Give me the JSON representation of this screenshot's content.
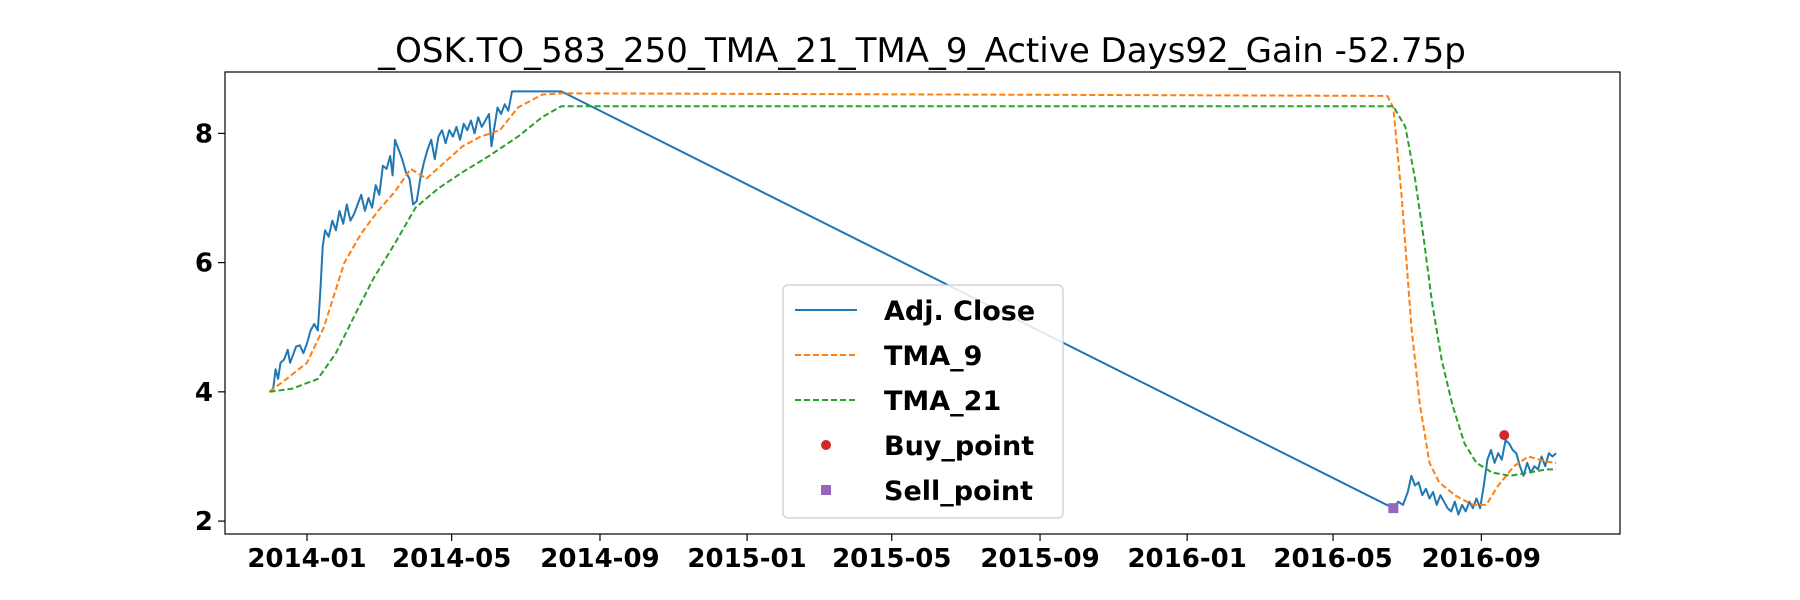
{
  "chart_data": {
    "type": "line",
    "title": "_OSK.TO_583_250_TMA_21_TMA_9_Active Days92_Gain -52.75p",
    "xlabel": "",
    "ylabel": "",
    "x_type": "date",
    "xlim": [
      "2013-10-25",
      "2016-12-25"
    ],
    "ylim": [
      1.8,
      8.95
    ],
    "xticks": [
      "2014-01",
      "2014-05",
      "2014-09",
      "2015-01",
      "2015-05",
      "2015-09",
      "2016-01",
      "2016-05",
      "2016-09"
    ],
    "yticks": [
      2,
      4,
      6,
      8
    ],
    "grid": false,
    "legend_position": "lower center",
    "series": [
      {
        "name": "Adj. Close",
        "color": "#1f77b4",
        "style": "solid",
        "points": [
          [
            "2013-12-01",
            4.0
          ],
          [
            "2013-12-04",
            4.05
          ],
          [
            "2013-12-06",
            4.35
          ],
          [
            "2013-12-08",
            4.2
          ],
          [
            "2013-12-10",
            4.45
          ],
          [
            "2013-12-13",
            4.5
          ],
          [
            "2013-12-16",
            4.65
          ],
          [
            "2013-12-18",
            4.45
          ],
          [
            "2013-12-20",
            4.55
          ],
          [
            "2013-12-23",
            4.7
          ],
          [
            "2013-12-26",
            4.72
          ],
          [
            "2013-12-29",
            4.6
          ],
          [
            "2014-01-01",
            4.75
          ],
          [
            "2014-01-04",
            4.95
          ],
          [
            "2014-01-07",
            5.05
          ],
          [
            "2014-01-10",
            4.95
          ],
          [
            "2014-01-12",
            5.55
          ],
          [
            "2014-01-14",
            6.25
          ],
          [
            "2014-01-16",
            6.5
          ],
          [
            "2014-01-19",
            6.4
          ],
          [
            "2014-01-22",
            6.65
          ],
          [
            "2014-01-25",
            6.5
          ],
          [
            "2014-01-28",
            6.8
          ],
          [
            "2014-01-31",
            6.6
          ],
          [
            "2014-02-03",
            6.9
          ],
          [
            "2014-02-06",
            6.65
          ],
          [
            "2014-02-09",
            6.75
          ],
          [
            "2014-02-12",
            6.9
          ],
          [
            "2014-02-15",
            7.05
          ],
          [
            "2014-02-18",
            6.8
          ],
          [
            "2014-02-21",
            7.0
          ],
          [
            "2014-02-24",
            6.85
          ],
          [
            "2014-02-27",
            7.2
          ],
          [
            "2014-03-02",
            7.05
          ],
          [
            "2014-03-05",
            7.5
          ],
          [
            "2014-03-08",
            7.45
          ],
          [
            "2014-03-11",
            7.65
          ],
          [
            "2014-03-13",
            7.35
          ],
          [
            "2014-03-15",
            7.9
          ],
          [
            "2014-03-18",
            7.75
          ],
          [
            "2014-03-21",
            7.6
          ],
          [
            "2014-03-24",
            7.4
          ],
          [
            "2014-03-27",
            7.3
          ],
          [
            "2014-03-30",
            6.9
          ],
          [
            "2014-04-02",
            6.95
          ],
          [
            "2014-04-05",
            7.3
          ],
          [
            "2014-04-08",
            7.55
          ],
          [
            "2014-04-11",
            7.75
          ],
          [
            "2014-04-14",
            7.9
          ],
          [
            "2014-04-17",
            7.6
          ],
          [
            "2014-04-20",
            7.95
          ],
          [
            "2014-04-23",
            8.05
          ],
          [
            "2014-04-26",
            7.85
          ],
          [
            "2014-04-29",
            8.05
          ],
          [
            "2014-05-02",
            7.95
          ],
          [
            "2014-05-05",
            8.1
          ],
          [
            "2014-05-08",
            7.9
          ],
          [
            "2014-05-11",
            8.15
          ],
          [
            "2014-05-14",
            8.05
          ],
          [
            "2014-05-17",
            8.2
          ],
          [
            "2014-05-20",
            8.0
          ],
          [
            "2014-05-23",
            8.25
          ],
          [
            "2014-05-26",
            8.1
          ],
          [
            "2014-05-29",
            8.2
          ],
          [
            "2014-06-01",
            8.3
          ],
          [
            "2014-06-03",
            7.8
          ],
          [
            "2014-06-05",
            8.05
          ],
          [
            "2014-06-08",
            8.4
          ],
          [
            "2014-06-11",
            8.3
          ],
          [
            "2014-06-14",
            8.45
          ],
          [
            "2014-06-17",
            8.35
          ],
          [
            "2014-06-20",
            8.65
          ],
          [
            "2014-07-31",
            8.65
          ],
          [
            "2016-06-20",
            2.2
          ],
          [
            "2016-06-24",
            2.3
          ],
          [
            "2016-06-28",
            2.25
          ],
          [
            "2016-07-02",
            2.45
          ],
          [
            "2016-07-05",
            2.7
          ],
          [
            "2016-07-08",
            2.55
          ],
          [
            "2016-07-11",
            2.6
          ],
          [
            "2016-07-14",
            2.4
          ],
          [
            "2016-07-17",
            2.5
          ],
          [
            "2016-07-20",
            2.35
          ],
          [
            "2016-07-23",
            2.45
          ],
          [
            "2016-07-26",
            2.25
          ],
          [
            "2016-07-29",
            2.4
          ],
          [
            "2016-08-01",
            2.3
          ],
          [
            "2016-08-04",
            2.2
          ],
          [
            "2016-08-07",
            2.15
          ],
          [
            "2016-08-10",
            2.3
          ],
          [
            "2016-08-13",
            2.1
          ],
          [
            "2016-08-16",
            2.25
          ],
          [
            "2016-08-19",
            2.15
          ],
          [
            "2016-08-22",
            2.3
          ],
          [
            "2016-08-25",
            2.2
          ],
          [
            "2016-08-28",
            2.35
          ],
          [
            "2016-08-31",
            2.2
          ],
          [
            "2016-09-03",
            2.55
          ],
          [
            "2016-09-06",
            2.95
          ],
          [
            "2016-09-09",
            3.1
          ],
          [
            "2016-09-12",
            2.9
          ],
          [
            "2016-09-15",
            3.05
          ],
          [
            "2016-09-18",
            2.95
          ],
          [
            "2016-09-21",
            3.25
          ],
          [
            "2016-09-24",
            3.2
          ],
          [
            "2016-09-27",
            3.1
          ],
          [
            "2016-09-30",
            3.05
          ],
          [
            "2016-10-03",
            2.85
          ],
          [
            "2016-10-06",
            2.7
          ],
          [
            "2016-10-09",
            2.9
          ],
          [
            "2016-10-12",
            2.75
          ],
          [
            "2016-10-15",
            2.85
          ],
          [
            "2016-10-18",
            2.8
          ],
          [
            "2016-10-21",
            3.0
          ],
          [
            "2016-10-24",
            2.85
          ],
          [
            "2016-10-27",
            3.05
          ],
          [
            "2016-10-30",
            3.0
          ],
          [
            "2016-11-02",
            3.05
          ]
        ]
      },
      {
        "name": "TMA_9",
        "color": "#ff7f0e",
        "style": "dashed",
        "points": [
          [
            "2013-12-01",
            4.0
          ],
          [
            "2013-12-15",
            4.2
          ],
          [
            "2014-01-01",
            4.45
          ],
          [
            "2014-01-15",
            5.0
          ],
          [
            "2014-02-01",
            6.0
          ],
          [
            "2014-02-15",
            6.45
          ],
          [
            "2014-03-01",
            6.8
          ],
          [
            "2014-03-15",
            7.1
          ],
          [
            "2014-03-28",
            7.45
          ],
          [
            "2014-04-10",
            7.3
          ],
          [
            "2014-04-25",
            7.55
          ],
          [
            "2014-05-10",
            7.8
          ],
          [
            "2014-05-25",
            7.95
          ],
          [
            "2014-06-10",
            8.05
          ],
          [
            "2014-06-25",
            8.4
          ],
          [
            "2014-07-15",
            8.6
          ],
          [
            "2014-07-31",
            8.62
          ],
          [
            "2016-06-15",
            8.58
          ],
          [
            "2016-06-20",
            8.4
          ],
          [
            "2016-06-27",
            7.0
          ],
          [
            "2016-07-05",
            5.0
          ],
          [
            "2016-07-12",
            3.8
          ],
          [
            "2016-07-20",
            2.9
          ],
          [
            "2016-07-28",
            2.6
          ],
          [
            "2016-08-10",
            2.4
          ],
          [
            "2016-08-25",
            2.25
          ],
          [
            "2016-09-05",
            2.25
          ],
          [
            "2016-09-15",
            2.55
          ],
          [
            "2016-09-28",
            2.85
          ],
          [
            "2016-10-10",
            3.0
          ],
          [
            "2016-10-25",
            2.92
          ],
          [
            "2016-11-02",
            2.9
          ]
        ]
      },
      {
        "name": "TMA_21",
        "color": "#2ca02c",
        "style": "dashed",
        "points": [
          [
            "2013-12-01",
            4.0
          ],
          [
            "2013-12-20",
            4.05
          ],
          [
            "2014-01-10",
            4.2
          ],
          [
            "2014-01-25",
            4.6
          ],
          [
            "2014-02-10",
            5.2
          ],
          [
            "2014-02-25",
            5.75
          ],
          [
            "2014-03-15",
            6.3
          ],
          [
            "2014-04-01",
            6.85
          ],
          [
            "2014-04-20",
            7.15
          ],
          [
            "2014-05-10",
            7.4
          ],
          [
            "2014-06-01",
            7.65
          ],
          [
            "2014-06-25",
            7.95
          ],
          [
            "2014-07-15",
            8.25
          ],
          [
            "2014-07-31",
            8.42
          ],
          [
            "2016-06-20",
            8.42
          ],
          [
            "2016-06-30",
            8.1
          ],
          [
            "2016-07-08",
            7.3
          ],
          [
            "2016-07-15",
            6.4
          ],
          [
            "2016-07-22",
            5.4
          ],
          [
            "2016-07-30",
            4.5
          ],
          [
            "2016-08-08",
            3.8
          ],
          [
            "2016-08-18",
            3.2
          ],
          [
            "2016-08-28",
            2.9
          ],
          [
            "2016-09-10",
            2.75
          ],
          [
            "2016-09-25",
            2.7
          ],
          [
            "2016-10-10",
            2.75
          ],
          [
            "2016-10-25",
            2.8
          ],
          [
            "2016-11-02",
            2.8
          ]
        ]
      }
    ],
    "markers": [
      {
        "name": "Buy_point",
        "color": "#d62728",
        "shape": "circle",
        "points": [
          [
            "2016-09-20",
            3.33
          ]
        ]
      },
      {
        "name": "Sell_point",
        "color": "#9467bd",
        "shape": "square",
        "points": [
          [
            "2016-06-20",
            2.2
          ]
        ]
      }
    ]
  }
}
